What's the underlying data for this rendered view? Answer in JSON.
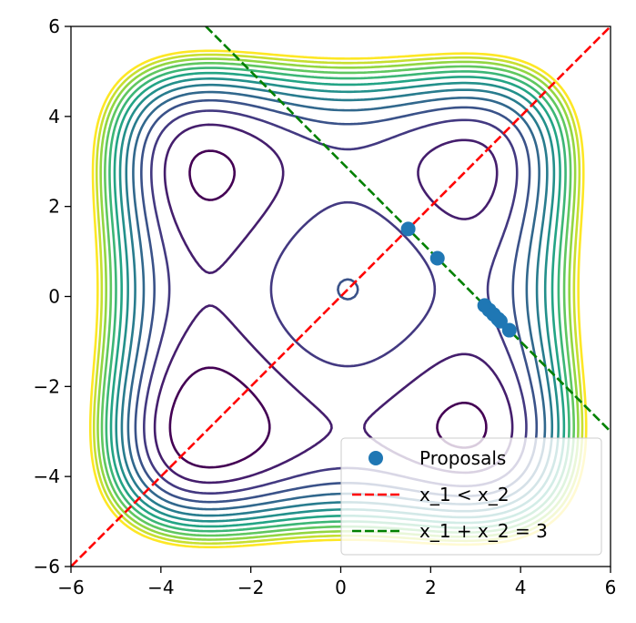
{
  "chart_data": {
    "type": "scatter",
    "title": "",
    "xlabel": "",
    "ylabel": "",
    "xlim": [
      -6,
      6
    ],
    "ylim": [
      -6,
      6
    ],
    "xticks": [
      -6,
      -4,
      -2,
      0,
      2,
      4,
      6
    ],
    "yticks": [
      -6,
      -4,
      -2,
      0,
      2,
      4,
      6
    ],
    "xtick_labels": [
      "−6",
      "−4",
      "−2",
      "0",
      "2",
      "4",
      "6"
    ],
    "ytick_labels": [
      "−6",
      "−4",
      "−2",
      "0",
      "2",
      "4",
      "6"
    ],
    "grid": false,
    "background": "contour",
    "contour": {
      "function": "styblinski-tang-2d",
      "levels": [
        -60,
        -40,
        -20,
        0,
        20,
        40,
        60,
        80,
        100,
        120,
        140,
        160,
        180
      ],
      "colormap": [
        "#440154",
        "#46327e",
        "#365c8d",
        "#277f8e",
        "#1fa187",
        "#4ac16d",
        "#a0da39",
        "#fde725"
      ]
    },
    "series": [
      {
        "name": "Proposals",
        "kind": "scatter",
        "color": "#1f77b4",
        "x": [
          1.5,
          2.15,
          3.2,
          3.3,
          3.4,
          3.5,
          3.55,
          3.75
        ],
        "y": [
          1.5,
          0.85,
          -0.2,
          -0.3,
          -0.4,
          -0.5,
          -0.55,
          -0.75
        ]
      },
      {
        "name": "x_1 < x_2",
        "kind": "line",
        "style": "dashed",
        "color": "#ff0000",
        "x": [
          -6,
          6
        ],
        "y": [
          -6,
          6
        ]
      },
      {
        "name": "x_1 + x_2 = 3",
        "kind": "line",
        "style": "dashed",
        "color": "#008000",
        "x": [
          -3,
          6
        ],
        "y": [
          6,
          -3
        ]
      }
    ],
    "legend": {
      "placement": "lower-right",
      "entries": [
        "Proposals",
        "x_1 < x_2",
        "x_1 + x_2 = 3"
      ]
    }
  }
}
